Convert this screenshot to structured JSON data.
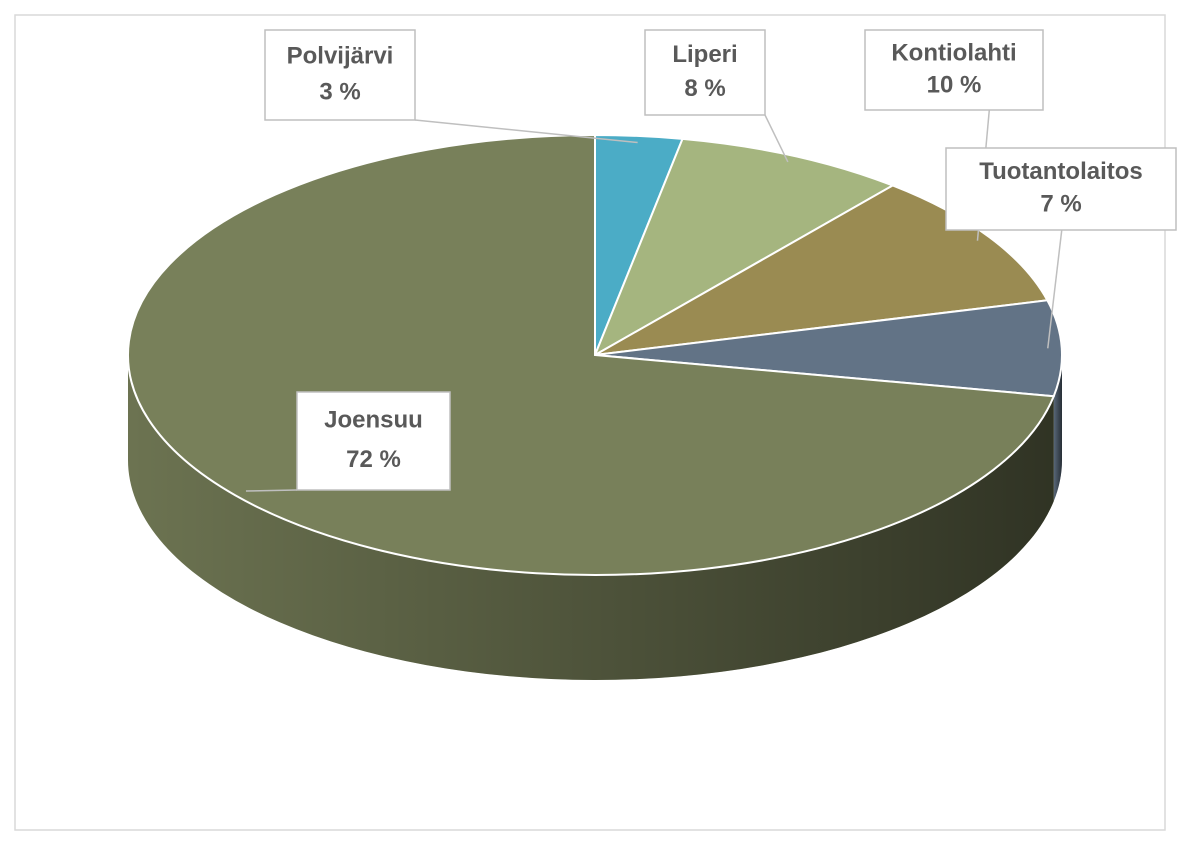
{
  "chart_data": {
    "type": "pie",
    "categories": [
      "Polvijärvi",
      "Liperi",
      "Kontiolahti",
      "Tuotantolaitos",
      "Joensuu"
    ],
    "values": [
      3,
      8,
      10,
      7,
      72
    ],
    "value_labels": [
      "3 %",
      "8 %",
      "10 %",
      "7 %",
      "72 %"
    ],
    "colors": [
      "#4bacc6",
      "#a5b57f",
      "#9a8b52",
      "#627386",
      "#78805a"
    ]
  }
}
